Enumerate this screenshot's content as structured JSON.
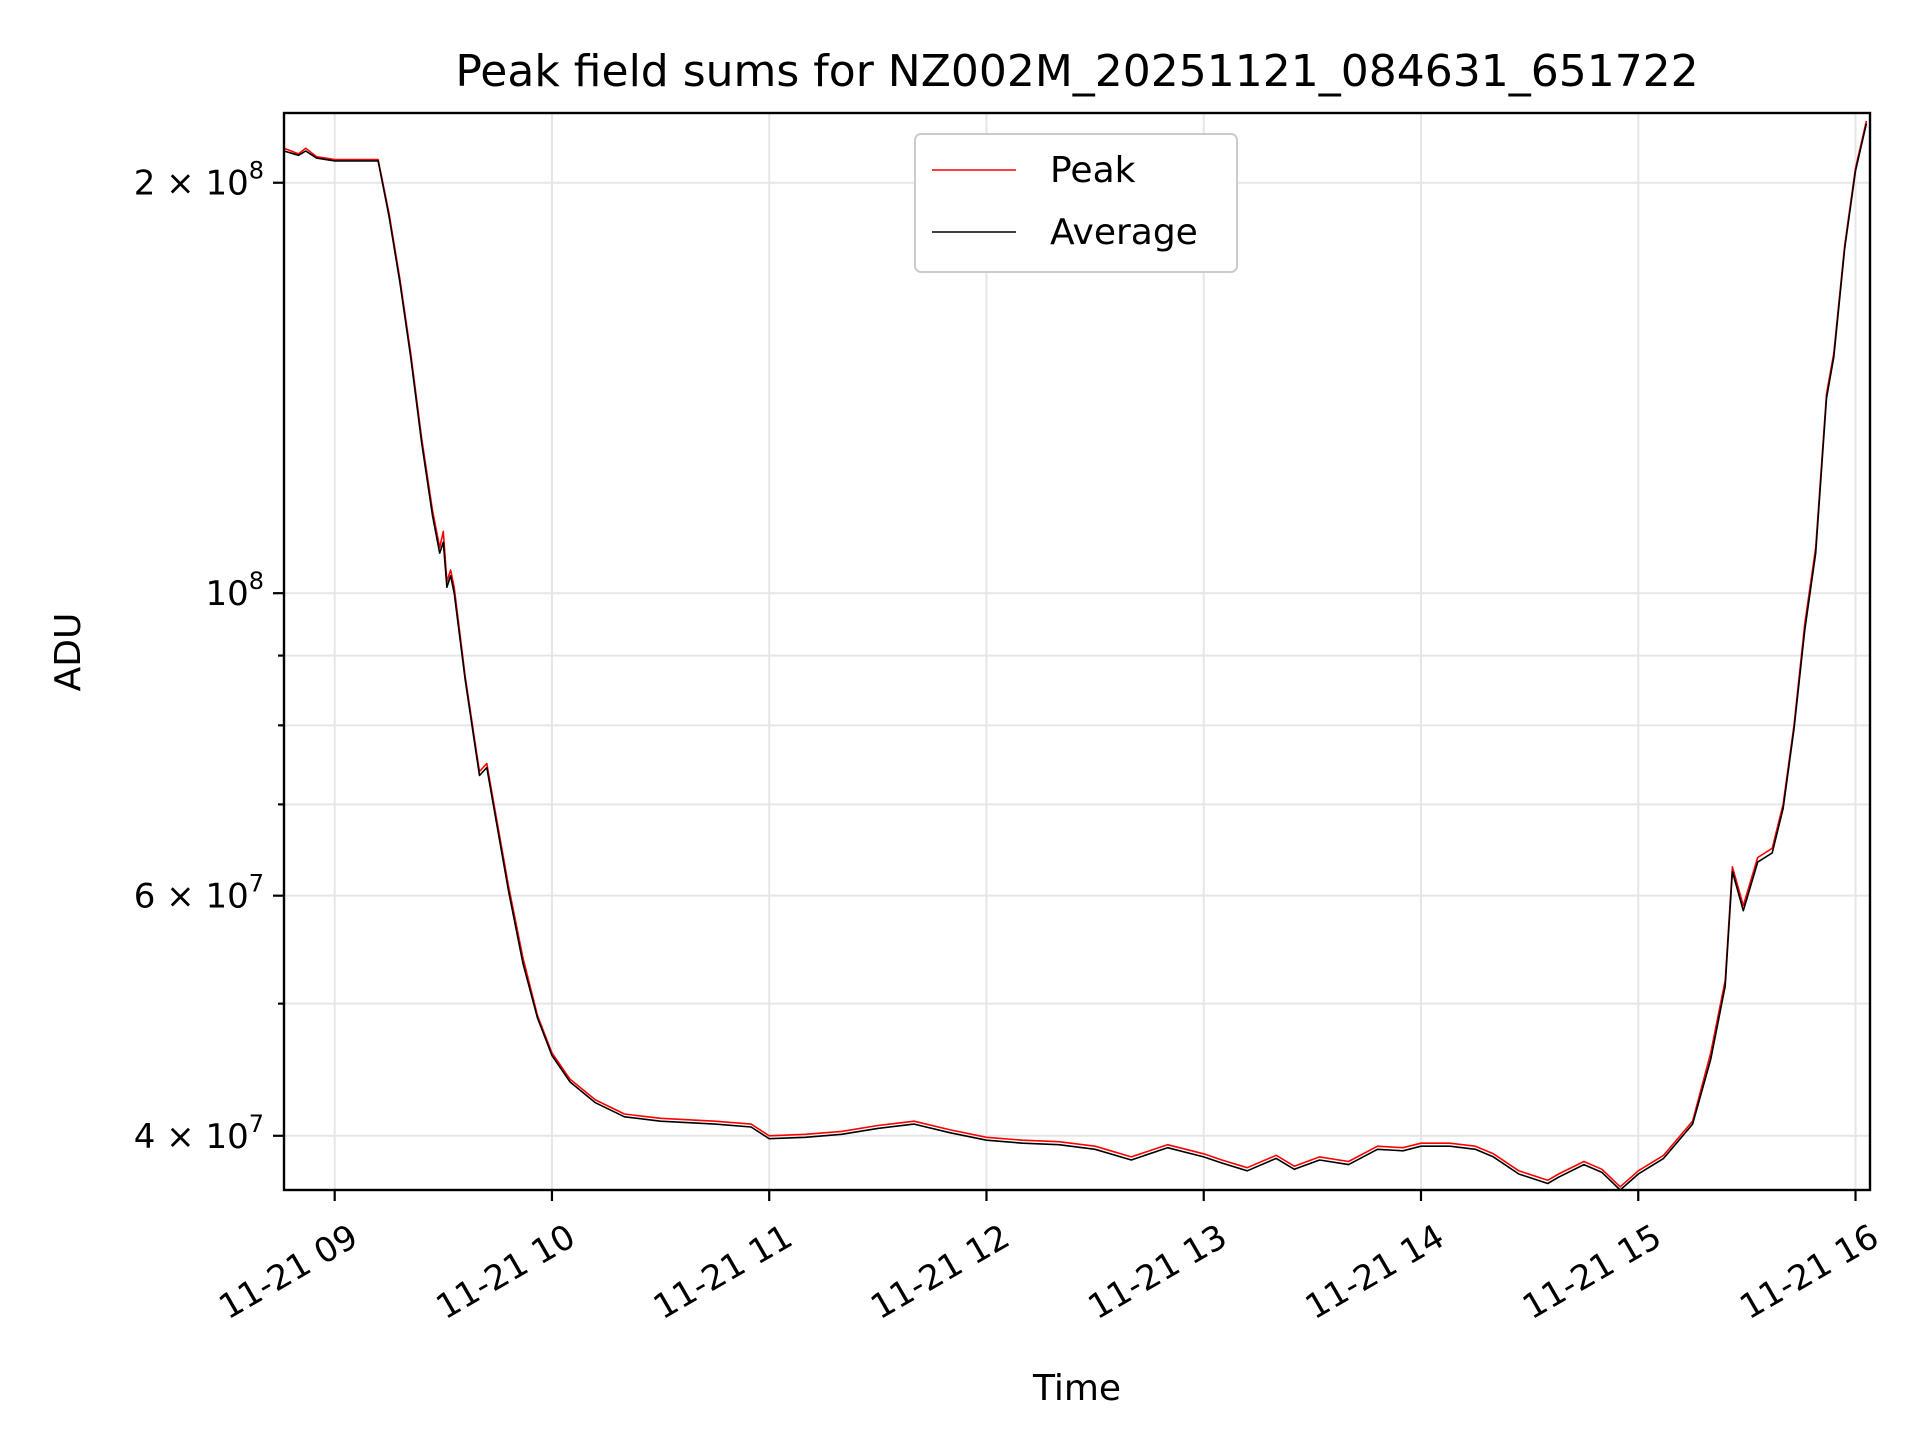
{
  "chart_data": {
    "type": "line",
    "title": "Peak field sums for NZ002M_20251121_084631_651722",
    "xlabel": "Time",
    "ylabel": "ADU",
    "y_scale": "log",
    "xlim": [
      "2025-11-21 08:46",
      "2025-11-21 16:04"
    ],
    "ylim": [
      36500000,
      225000000
    ],
    "x_ticks": [
      {
        "value": "2025-11-21 09:00",
        "label": "11-21 09"
      },
      {
        "value": "2025-11-21 10:00",
        "label": "11-21 10"
      },
      {
        "value": "2025-11-21 11:00",
        "label": "11-21 11"
      },
      {
        "value": "2025-11-21 12:00",
        "label": "11-21 12"
      },
      {
        "value": "2025-11-21 13:00",
        "label": "11-21 13"
      },
      {
        "value": "2025-11-21 14:00",
        "label": "11-21 14"
      },
      {
        "value": "2025-11-21 15:00",
        "label": "11-21 15"
      },
      {
        "value": "2025-11-21 16:00",
        "label": "11-21 16"
      }
    ],
    "y_ticks": [
      {
        "value": 40000000,
        "mantissa": "4 × 10",
        "exponent": "7"
      },
      {
        "value": 60000000,
        "mantissa": "6 × 10",
        "exponent": "7"
      },
      {
        "value": 100000000,
        "mantissa": "10",
        "exponent": "8"
      },
      {
        "value": 200000000,
        "mantissa": "2 × 10",
        "exponent": "8"
      }
    ],
    "y_minor_grid": [
      50000000,
      70000000,
      80000000,
      90000000
    ],
    "grid": true,
    "legend_position": "top-center",
    "series": [
      {
        "name": "Peak",
        "color": "#ff0000",
        "points": [
          [
            "2025-11-21 08:46",
            212000000
          ],
          [
            "2025-11-21 08:50",
            210000000
          ],
          [
            "2025-11-21 08:52",
            212000000
          ],
          [
            "2025-11-21 08:55",
            209000000
          ],
          [
            "2025-11-21 09:00",
            208000000
          ],
          [
            "2025-11-21 09:10",
            208000000
          ],
          [
            "2025-11-21 09:12",
            208000000
          ],
          [
            "2025-11-21 09:15",
            190000000
          ],
          [
            "2025-11-21 09:18",
            170000000
          ],
          [
            "2025-11-21 09:21",
            150000000
          ],
          [
            "2025-11-21 09:24",
            130000000
          ],
          [
            "2025-11-21 09:27",
            115000000
          ],
          [
            "2025-11-21 09:29",
            108000000
          ],
          [
            "2025-11-21 09:30",
            111000000
          ],
          [
            "2025-11-21 09:31",
            102000000
          ],
          [
            "2025-11-21 09:32",
            104000000
          ],
          [
            "2025-11-21 09:33",
            101000000
          ],
          [
            "2025-11-21 09:36",
            87000000
          ],
          [
            "2025-11-21 09:39",
            77000000
          ],
          [
            "2025-11-21 09:40",
            74000000
          ],
          [
            "2025-11-21 09:42",
            75000000
          ],
          [
            "2025-11-21 09:44",
            70000000
          ],
          [
            "2025-11-21 09:48",
            61000000
          ],
          [
            "2025-11-21 09:52",
            54000000
          ],
          [
            "2025-11-21 09:56",
            49000000
          ],
          [
            "2025-11-21 10:00",
            46000000
          ],
          [
            "2025-11-21 10:05",
            44000000
          ],
          [
            "2025-11-21 10:12",
            42500000
          ],
          [
            "2025-11-21 10:20",
            41500000
          ],
          [
            "2025-11-21 10:30",
            41200000
          ],
          [
            "2025-11-21 10:45",
            41000000
          ],
          [
            "2025-11-21 10:55",
            40800000
          ],
          [
            "2025-11-21 11:00",
            40000000
          ],
          [
            "2025-11-21 11:10",
            40100000
          ],
          [
            "2025-11-21 11:20",
            40300000
          ],
          [
            "2025-11-21 11:30",
            40700000
          ],
          [
            "2025-11-21 11:40",
            41000000
          ],
          [
            "2025-11-21 11:50",
            40400000
          ],
          [
            "2025-11-21 12:00",
            39900000
          ],
          [
            "2025-11-21 12:10",
            39700000
          ],
          [
            "2025-11-21 12:20",
            39600000
          ],
          [
            "2025-11-21 12:30",
            39300000
          ],
          [
            "2025-11-21 12:40",
            38600000
          ],
          [
            "2025-11-21 12:50",
            39400000
          ],
          [
            "2025-11-21 13:00",
            38800000
          ],
          [
            "2025-11-21 13:05",
            38400000
          ],
          [
            "2025-11-21 13:12",
            37900000
          ],
          [
            "2025-11-21 13:20",
            38700000
          ],
          [
            "2025-11-21 13:25",
            38000000
          ],
          [
            "2025-11-21 13:32",
            38600000
          ],
          [
            "2025-11-21 13:40",
            38300000
          ],
          [
            "2025-11-21 13:48",
            39300000
          ],
          [
            "2025-11-21 13:55",
            39200000
          ],
          [
            "2025-11-21 14:00",
            39500000
          ],
          [
            "2025-11-21 14:08",
            39500000
          ],
          [
            "2025-11-21 14:15",
            39300000
          ],
          [
            "2025-11-21 14:20",
            38800000
          ],
          [
            "2025-11-21 14:27",
            37700000
          ],
          [
            "2025-11-21 14:35",
            37100000
          ],
          [
            "2025-11-21 14:38",
            37500000
          ],
          [
            "2025-11-21 14:45",
            38300000
          ],
          [
            "2025-11-21 14:50",
            37800000
          ],
          [
            "2025-11-21 14:55",
            36700000
          ],
          [
            "2025-11-21 15:00",
            37700000
          ],
          [
            "2025-11-21 15:07",
            38700000
          ],
          [
            "2025-11-21 15:15",
            41000000
          ],
          [
            "2025-11-21 15:20",
            46000000
          ],
          [
            "2025-11-21 15:24",
            52000000
          ],
          [
            "2025-11-21 15:26",
            63000000
          ],
          [
            "2025-11-21 15:29",
            59000000
          ],
          [
            "2025-11-21 15:33",
            64000000
          ],
          [
            "2025-11-21 15:37",
            65000000
          ],
          [
            "2025-11-21 15:40",
            70000000
          ],
          [
            "2025-11-21 15:43",
            80000000
          ],
          [
            "2025-11-21 15:46",
            95000000
          ],
          [
            "2025-11-21 15:49",
            108000000
          ],
          [
            "2025-11-21 15:52",
            140000000
          ],
          [
            "2025-11-21 15:54",
            150000000
          ],
          [
            "2025-11-21 15:57",
            180000000
          ],
          [
            "2025-11-21 16:00",
            205000000
          ],
          [
            "2025-11-21 16:03",
            222000000
          ]
        ]
      },
      {
        "name": "Average",
        "color": "#000000",
        "points": [
          [
            "2025-11-21 08:46",
            211000000
          ],
          [
            "2025-11-21 08:50",
            209500000
          ],
          [
            "2025-11-21 08:52",
            211000000
          ],
          [
            "2025-11-21 08:55",
            208500000
          ],
          [
            "2025-11-21 09:00",
            207500000
          ],
          [
            "2025-11-21 09:10",
            207500000
          ],
          [
            "2025-11-21 09:12",
            207500000
          ],
          [
            "2025-11-21 09:15",
            189000000
          ],
          [
            "2025-11-21 09:18",
            169000000
          ],
          [
            "2025-11-21 09:21",
            149000000
          ],
          [
            "2025-11-21 09:24",
            129000000
          ],
          [
            "2025-11-21 09:27",
            114000000
          ],
          [
            "2025-11-21 09:29",
            107000000
          ],
          [
            "2025-11-21 09:30",
            109000000
          ],
          [
            "2025-11-21 09:31",
            101000000
          ],
          [
            "2025-11-21 09:32",
            103000000
          ],
          [
            "2025-11-21 09:33",
            100000000
          ],
          [
            "2025-11-21 09:36",
            86500000
          ],
          [
            "2025-11-21 09:39",
            76500000
          ],
          [
            "2025-11-21 09:40",
            73500000
          ],
          [
            "2025-11-21 09:42",
            74500000
          ],
          [
            "2025-11-21 09:44",
            69500000
          ],
          [
            "2025-11-21 09:48",
            60500000
          ],
          [
            "2025-11-21 09:52",
            53500000
          ],
          [
            "2025-11-21 09:56",
            48800000
          ],
          [
            "2025-11-21 10:00",
            45800000
          ],
          [
            "2025-11-21 10:05",
            43800000
          ],
          [
            "2025-11-21 10:12",
            42300000
          ],
          [
            "2025-11-21 10:20",
            41300000
          ],
          [
            "2025-11-21 10:30",
            41000000
          ],
          [
            "2025-11-21 10:45",
            40800000
          ],
          [
            "2025-11-21 10:55",
            40600000
          ],
          [
            "2025-11-21 11:00",
            39800000
          ],
          [
            "2025-11-21 11:10",
            39900000
          ],
          [
            "2025-11-21 11:20",
            40100000
          ],
          [
            "2025-11-21 11:30",
            40500000
          ],
          [
            "2025-11-21 11:40",
            40800000
          ],
          [
            "2025-11-21 11:50",
            40200000
          ],
          [
            "2025-11-21 12:00",
            39700000
          ],
          [
            "2025-11-21 12:10",
            39500000
          ],
          [
            "2025-11-21 12:20",
            39400000
          ],
          [
            "2025-11-21 12:30",
            39100000
          ],
          [
            "2025-11-21 12:40",
            38400000
          ],
          [
            "2025-11-21 12:50",
            39200000
          ],
          [
            "2025-11-21 13:00",
            38600000
          ],
          [
            "2025-11-21 13:05",
            38200000
          ],
          [
            "2025-11-21 13:12",
            37700000
          ],
          [
            "2025-11-21 13:20",
            38500000
          ],
          [
            "2025-11-21 13:25",
            37800000
          ],
          [
            "2025-11-21 13:32",
            38400000
          ],
          [
            "2025-11-21 13:40",
            38100000
          ],
          [
            "2025-11-21 13:48",
            39100000
          ],
          [
            "2025-11-21 13:55",
            39000000
          ],
          [
            "2025-11-21 14:00",
            39300000
          ],
          [
            "2025-11-21 14:08",
            39300000
          ],
          [
            "2025-11-21 14:15",
            39100000
          ],
          [
            "2025-11-21 14:20",
            38600000
          ],
          [
            "2025-11-21 14:27",
            37500000
          ],
          [
            "2025-11-21 14:35",
            36900000
          ],
          [
            "2025-11-21 14:38",
            37300000
          ],
          [
            "2025-11-21 14:45",
            38100000
          ],
          [
            "2025-11-21 14:50",
            37600000
          ],
          [
            "2025-11-21 14:55",
            36500000
          ],
          [
            "2025-11-21 15:00",
            37500000
          ],
          [
            "2025-11-21 15:07",
            38500000
          ],
          [
            "2025-11-21 15:15",
            40800000
          ],
          [
            "2025-11-21 15:20",
            45500000
          ],
          [
            "2025-11-21 15:24",
            51500000
          ],
          [
            "2025-11-21 15:26",
            62500000
          ],
          [
            "2025-11-21 15:29",
            58500000
          ],
          [
            "2025-11-21 15:33",
            63500000
          ],
          [
            "2025-11-21 15:37",
            64500000
          ],
          [
            "2025-11-21 15:40",
            69500000
          ],
          [
            "2025-11-21 15:43",
            79500000
          ],
          [
            "2025-11-21 15:46",
            94000000
          ],
          [
            "2025-11-21 15:49",
            107000000
          ],
          [
            "2025-11-21 15:52",
            139000000
          ],
          [
            "2025-11-21 15:54",
            149000000
          ],
          [
            "2025-11-21 15:57",
            179000000
          ],
          [
            "2025-11-21 16:00",
            204000000
          ],
          [
            "2025-11-21 16:03",
            221000000
          ]
        ]
      }
    ]
  }
}
